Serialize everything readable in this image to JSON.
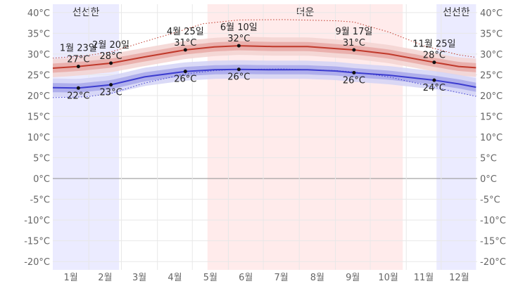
{
  "chart_data": {
    "type": "line",
    "x_unit": "day_of_year",
    "y_unit": "°C",
    "ylim": [
      -22,
      42
    ],
    "yticks": [
      {
        "v": 40,
        "label": "40°C"
      },
      {
        "v": 35,
        "label": "35°C"
      },
      {
        "v": 30,
        "label": "30°C"
      },
      {
        "v": 25,
        "label": "25°C"
      },
      {
        "v": 20,
        "label": "20°C"
      },
      {
        "v": 15,
        "label": "15°C"
      },
      {
        "v": 10,
        "label": "10°C"
      },
      {
        "v": 5,
        "label": "5°C"
      },
      {
        "v": 0,
        "label": "0°C"
      },
      {
        "v": -5,
        "label": "-5°C"
      },
      {
        "v": -10,
        "label": "-10°C"
      },
      {
        "v": -15,
        "label": "-15°C"
      },
      {
        "v": -20,
        "label": "-20°C"
      }
    ],
    "months": [
      "1월",
      "2월",
      "3월",
      "4월",
      "5월",
      "6월",
      "7월",
      "8월",
      "9월",
      "10월",
      "11월",
      "12월"
    ],
    "seasons": [
      {
        "label": "선선한",
        "start_day": 1,
        "end_day": 58,
        "color": "#ebebff"
      },
      {
        "label": "더운",
        "start_day": 134,
        "end_day": 302,
        "color": "#ffebeb"
      },
      {
        "label": "선선한",
        "start_day": 331,
        "end_day": 365,
        "color": "#ebebff"
      }
    ],
    "grid": true,
    "zero_line": true,
    "series": [
      {
        "key": "high",
        "color": "#c0392b",
        "band_inner_color": "#e8a9a6",
        "band_outer_color": "#f3d3d1",
        "points": [
          [
            1,
            26.6
          ],
          [
            23,
            27
          ],
          [
            51,
            27.8
          ],
          [
            80,
            29.3
          ],
          [
            115,
            31
          ],
          [
            140,
            31.7
          ],
          [
            161,
            32
          ],
          [
            190,
            31.8
          ],
          [
            220,
            31.8
          ],
          [
            245,
            31.3
          ],
          [
            260,
            31
          ],
          [
            290,
            30
          ],
          [
            329,
            28
          ],
          [
            350,
            27
          ],
          [
            365,
            26.7
          ]
        ]
      },
      {
        "key": "low",
        "color": "#3c3ccf",
        "band_inner_color": "#a7a7ea",
        "band_outer_color": "#d3d3f6",
        "points": [
          [
            1,
            21.9
          ],
          [
            23,
            21.8
          ],
          [
            51,
            22.6
          ],
          [
            80,
            24.5
          ],
          [
            115,
            25.8
          ],
          [
            140,
            26.2
          ],
          [
            161,
            26.3
          ],
          [
            190,
            26.2
          ],
          [
            220,
            26.2
          ],
          [
            245,
            25.9
          ],
          [
            260,
            25.5
          ],
          [
            290,
            24.9
          ],
          [
            329,
            23.7
          ],
          [
            350,
            22.8
          ],
          [
            365,
            22
          ]
        ]
      },
      {
        "key": "record_high",
        "style": "dotted",
        "color": "#c0392b",
        "points": [
          [
            1,
            29
          ],
          [
            30,
            29.6
          ],
          [
            51,
            30.5
          ],
          [
            80,
            33
          ],
          [
            110,
            35.5
          ],
          [
            130,
            37.3
          ],
          [
            161,
            38.2
          ],
          [
            200,
            38.3
          ],
          [
            245,
            38
          ],
          [
            260,
            37.7
          ],
          [
            290,
            35.3
          ],
          [
            320,
            32
          ],
          [
            350,
            29.8
          ],
          [
            365,
            29.2
          ]
        ]
      },
      {
        "key": "record_low",
        "style": "dotted",
        "color": "#3c3ccf",
        "points": [
          [
            1,
            19.5
          ],
          [
            30,
            19.7
          ],
          [
            51,
            20.5
          ],
          [
            80,
            23
          ],
          [
            115,
            25.2
          ],
          [
            140,
            26
          ],
          [
            161,
            26.3
          ],
          [
            200,
            26.4
          ],
          [
            245,
            26
          ],
          [
            260,
            25.7
          ],
          [
            290,
            24.5
          ],
          [
            329,
            22
          ],
          [
            350,
            20.7
          ],
          [
            365,
            19.8
          ]
        ]
      }
    ],
    "annotations": [
      {
        "day": 23,
        "temp": 27,
        "date": "1월 23일",
        "value": "27°C",
        "pos": "above"
      },
      {
        "day": 23,
        "temp": 21.8,
        "date": "",
        "value": "22°C",
        "pos": "below"
      },
      {
        "day": 51,
        "temp": 27.8,
        "date": "2월 20일",
        "value": "28°C",
        "pos": "above"
      },
      {
        "day": 51,
        "temp": 22.6,
        "date": "",
        "value": "23°C",
        "pos": "below"
      },
      {
        "day": 115,
        "temp": 31,
        "date": "4월 25일",
        "value": "31°C",
        "pos": "above"
      },
      {
        "day": 115,
        "temp": 25.8,
        "date": "",
        "value": "26°C",
        "pos": "below"
      },
      {
        "day": 161,
        "temp": 32,
        "date": "6월 10일",
        "value": "32°C",
        "pos": "above"
      },
      {
        "day": 161,
        "temp": 26.3,
        "date": "",
        "value": "26°C",
        "pos": "below"
      },
      {
        "day": 260,
        "temp": 31,
        "date": "9월 17일",
        "value": "31°C",
        "pos": "above"
      },
      {
        "day": 260,
        "temp": 25.5,
        "date": "",
        "value": "26°C",
        "pos": "below"
      },
      {
        "day": 329,
        "temp": 28,
        "date": "11월 25일",
        "value": "28°C",
        "pos": "above"
      },
      {
        "day": 329,
        "temp": 23.7,
        "date": "",
        "value": "24°C",
        "pos": "below"
      }
    ]
  }
}
